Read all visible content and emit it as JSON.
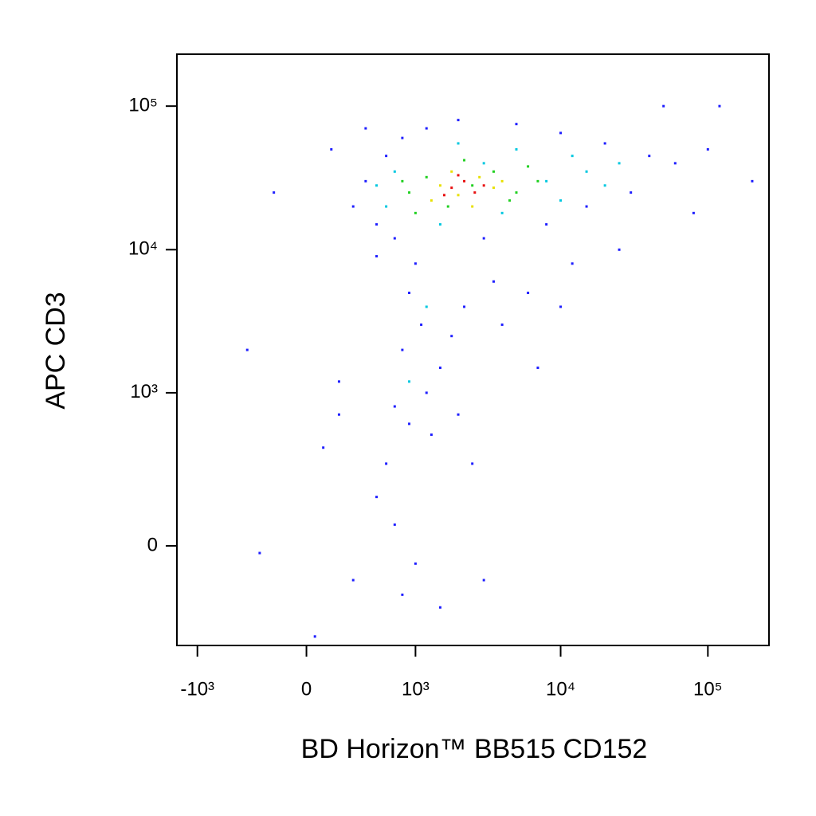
{
  "chart_data": {
    "type": "scatter",
    "x_label": "BD Horizon™ BB515  CD152",
    "y_label": "APC  CD3",
    "xscale": "biexponential",
    "yscale": "biexponential",
    "xlim": [
      -1400,
      260000
    ],
    "ylim": [
      -410,
      230000
    ],
    "xticks": [
      {
        "value": -1000,
        "label": "-10³"
      },
      0,
      {
        "value": 1000,
        "label": "10³"
      },
      {
        "value": 10000,
        "label": "10⁴"
      },
      {
        "value": 100000,
        "label": "10⁵"
      }
    ],
    "yticks": [
      0,
      {
        "value": 1000,
        "label": "10³"
      },
      {
        "value": 10000,
        "label": "10⁴"
      },
      {
        "value": 100000,
        "label": "10⁵"
      }
    ],
    "groups": [
      {
        "color": "#1f1fff",
        "x": [
          400,
          600,
          800,
          1200,
          2000,
          5000,
          10000,
          20000,
          40000,
          60000,
          300,
          500,
          700,
          3000,
          8000,
          15000,
          30000,
          80000,
          100000,
          120000,
          200000,
          25000,
          12000,
          6000,
          4000,
          900,
          1100,
          800,
          1500,
          1200,
          700,
          900,
          1300,
          600,
          500,
          700,
          1000,
          800,
          2500,
          2000,
          3000,
          1500,
          200,
          100,
          -300,
          -400,
          300,
          50,
          200,
          1800,
          2200,
          3500,
          1000,
          500,
          10000,
          7000,
          50000,
          400,
          150,
          -200
        ],
        "y": [
          30000,
          45000,
          60000,
          70000,
          80000,
          75000,
          65000,
          55000,
          45000,
          40000,
          20000,
          15000,
          12000,
          12000,
          15000,
          20000,
          25000,
          18000,
          50000,
          100000,
          30000,
          10000,
          8000,
          5000,
          3000,
          5000,
          3000,
          2000,
          1500,
          1000,
          800,
          600,
          500,
          300,
          150,
          60,
          -50,
          -150,
          300,
          700,
          -100,
          -200,
          1200,
          400,
          -20,
          2000,
          -100,
          -350,
          700,
          2500,
          4000,
          6000,
          8000,
          9000,
          4000,
          1500,
          100000,
          70000,
          50000,
          25000
        ]
      },
      {
        "color": "#00c8e0",
        "x": [
          700,
          3000,
          8000,
          15000,
          1500,
          4000,
          600,
          10000,
          25000,
          2000,
          1200,
          900,
          5000,
          500,
          12000,
          20000
        ],
        "y": [
          35000,
          40000,
          30000,
          35000,
          15000,
          18000,
          20000,
          22000,
          40000,
          55000,
          4000,
          1200,
          50000,
          28000,
          45000,
          28000
        ]
      },
      {
        "color": "#20d020",
        "x": [
          900,
          1200,
          1700,
          2500,
          3500,
          5000,
          7000,
          1000,
          2200,
          4500,
          800,
          6000
        ],
        "y": [
          25000,
          32000,
          20000,
          28000,
          35000,
          25000,
          30000,
          18000,
          42000,
          22000,
          30000,
          38000
        ]
      },
      {
        "color": "#e8e000",
        "x": [
          1500,
          2000,
          2800,
          3500,
          1800,
          4000,
          1300,
          2500
        ],
        "y": [
          28000,
          24000,
          32000,
          27000,
          35000,
          30000,
          22000,
          20000
        ]
      },
      {
        "color": "#e81010",
        "x": [
          1800,
          2200,
          2600,
          2000,
          3000,
          1600
        ],
        "y": [
          27000,
          30000,
          25000,
          33000,
          28000,
          24000
        ]
      }
    ]
  }
}
